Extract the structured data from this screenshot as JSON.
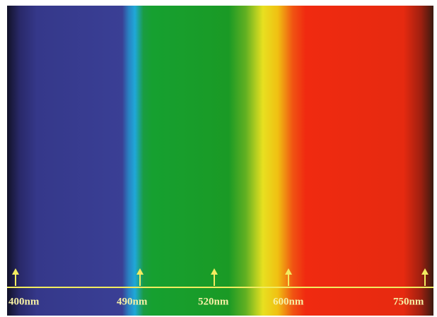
{
  "labels": [
    "400nm",
    "490nm",
    "520nm",
    "600nm",
    "750nm"
  ]
}
